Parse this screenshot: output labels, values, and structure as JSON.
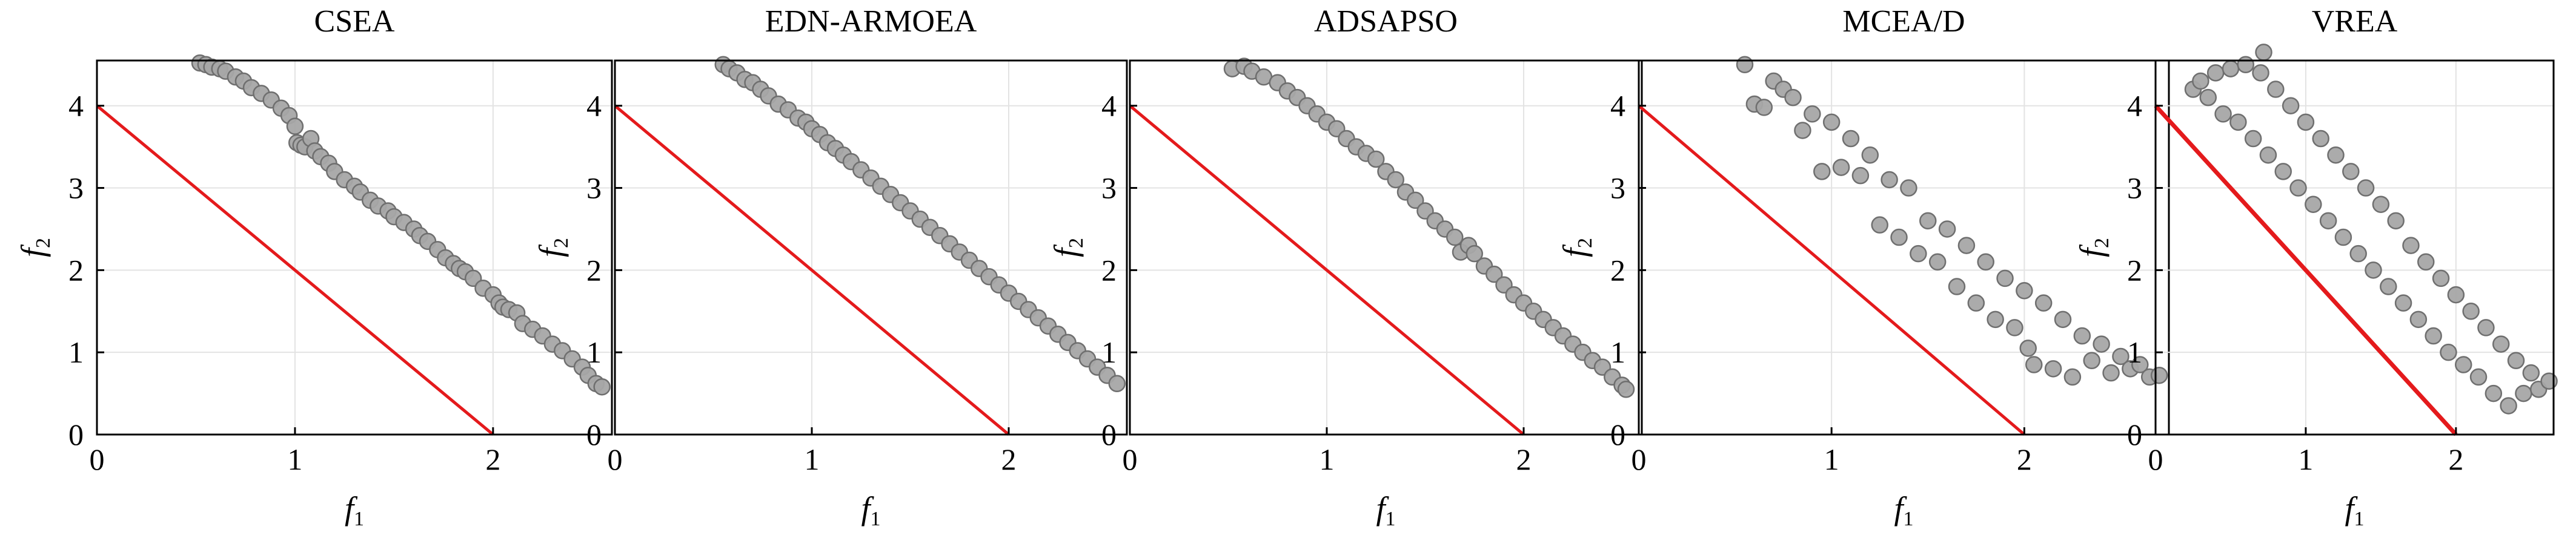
{
  "colors": {
    "front_line": "#e41a1c",
    "point_fill": "#a6a6a6",
    "point_stroke": "#6f6f6f",
    "grid": "#e3e3e3",
    "axis": "#000000"
  },
  "chart_data": [
    {
      "type": "scatter",
      "title": "CSEA",
      "xlabel_base": "f",
      "xlabel_sub": "1",
      "ylabel_base": "f",
      "ylabel_sub": "2",
      "xlim": [
        0,
        2.6
      ],
      "ylim": [
        0,
        4.55
      ],
      "xticks": [
        0,
        1,
        2
      ],
      "yticks": [
        0,
        1,
        2,
        3,
        4
      ],
      "grid": true,
      "reference_line": [
        [
          0,
          4
        ],
        [
          2,
          0
        ]
      ],
      "points": [
        [
          0.52,
          4.52
        ],
        [
          0.55,
          4.5
        ],
        [
          0.58,
          4.47
        ],
        [
          0.62,
          4.45
        ],
        [
          0.65,
          4.42
        ],
        [
          0.7,
          4.35
        ],
        [
          0.74,
          4.3
        ],
        [
          0.78,
          4.22
        ],
        [
          0.83,
          4.15
        ],
        [
          0.88,
          4.07
        ],
        [
          0.93,
          3.97
        ],
        [
          0.97,
          3.88
        ],
        [
          1.0,
          3.75
        ],
        [
          1.01,
          3.55
        ],
        [
          1.03,
          3.52
        ],
        [
          1.05,
          3.5
        ],
        [
          1.08,
          3.6
        ],
        [
          1.1,
          3.45
        ],
        [
          1.13,
          3.38
        ],
        [
          1.17,
          3.3
        ],
        [
          1.2,
          3.2
        ],
        [
          1.25,
          3.1
        ],
        [
          1.3,
          3.02
        ],
        [
          1.33,
          2.95
        ],
        [
          1.38,
          2.85
        ],
        [
          1.42,
          2.78
        ],
        [
          1.47,
          2.72
        ],
        [
          1.5,
          2.65
        ],
        [
          1.55,
          2.58
        ],
        [
          1.6,
          2.5
        ],
        [
          1.63,
          2.42
        ],
        [
          1.67,
          2.35
        ],
        [
          1.72,
          2.25
        ],
        [
          1.76,
          2.15
        ],
        [
          1.8,
          2.08
        ],
        [
          1.83,
          2.02
        ],
        [
          1.86,
          1.98
        ],
        [
          1.9,
          1.9
        ],
        [
          1.95,
          1.78
        ],
        [
          2.0,
          1.7
        ],
        [
          2.03,
          1.6
        ],
        [
          2.05,
          1.55
        ],
        [
          2.08,
          1.52
        ],
        [
          2.12,
          1.48
        ],
        [
          2.15,
          1.35
        ],
        [
          2.2,
          1.28
        ],
        [
          2.25,
          1.2
        ],
        [
          2.3,
          1.1
        ],
        [
          2.35,
          1.02
        ],
        [
          2.4,
          0.92
        ],
        [
          2.45,
          0.82
        ],
        [
          2.48,
          0.72
        ],
        [
          2.52,
          0.62
        ],
        [
          2.55,
          0.58
        ]
      ]
    },
    {
      "type": "scatter",
      "title": "EDN-ARMOEA",
      "xlabel_base": "f",
      "xlabel_sub": "1",
      "ylabel_base": "f",
      "ylabel_sub": "2",
      "xlim": [
        0,
        2.6
      ],
      "ylim": [
        0,
        4.55
      ],
      "xticks": [
        0,
        1,
        2
      ],
      "yticks": [
        0,
        1,
        2,
        3,
        4
      ],
      "grid": true,
      "reference_line": [
        [
          0,
          4
        ],
        [
          2,
          0
        ]
      ],
      "points": [
        [
          0.55,
          4.5
        ],
        [
          0.58,
          4.45
        ],
        [
          0.62,
          4.4
        ],
        [
          0.66,
          4.32
        ],
        [
          0.7,
          4.28
        ],
        [
          0.74,
          4.2
        ],
        [
          0.78,
          4.12
        ],
        [
          0.83,
          4.02
        ],
        [
          0.88,
          3.95
        ],
        [
          0.93,
          3.85
        ],
        [
          0.97,
          3.8
        ],
        [
          1.0,
          3.72
        ],
        [
          1.04,
          3.65
        ],
        [
          1.08,
          3.55
        ],
        [
          1.12,
          3.48
        ],
        [
          1.16,
          3.4
        ],
        [
          1.2,
          3.32
        ],
        [
          1.25,
          3.22
        ],
        [
          1.3,
          3.12
        ],
        [
          1.35,
          3.02
        ],
        [
          1.4,
          2.92
        ],
        [
          1.45,
          2.82
        ],
        [
          1.5,
          2.72
        ],
        [
          1.55,
          2.62
        ],
        [
          1.6,
          2.52
        ],
        [
          1.65,
          2.42
        ],
        [
          1.7,
          2.32
        ],
        [
          1.75,
          2.22
        ],
        [
          1.8,
          2.12
        ],
        [
          1.85,
          2.02
        ],
        [
          1.9,
          1.92
        ],
        [
          1.95,
          1.82
        ],
        [
          2.0,
          1.72
        ],
        [
          2.05,
          1.62
        ],
        [
          2.1,
          1.52
        ],
        [
          2.15,
          1.42
        ],
        [
          2.2,
          1.32
        ],
        [
          2.25,
          1.22
        ],
        [
          2.3,
          1.12
        ],
        [
          2.35,
          1.02
        ],
        [
          2.4,
          0.92
        ],
        [
          2.45,
          0.82
        ],
        [
          2.5,
          0.72
        ],
        [
          2.55,
          0.62
        ]
      ]
    },
    {
      "type": "scatter",
      "title": "ADSAPSO",
      "xlabel_base": "f",
      "xlabel_sub": "1",
      "ylabel_base": "f",
      "ylabel_sub": "2",
      "xlim": [
        0,
        2.6
      ],
      "ylim": [
        0,
        4.55
      ],
      "xticks": [
        0,
        1,
        2
      ],
      "yticks": [
        0,
        1,
        2,
        3,
        4
      ],
      "grid": true,
      "reference_line": [
        [
          0,
          4
        ],
        [
          2,
          0
        ]
      ],
      "points": [
        [
          0.52,
          4.45
        ],
        [
          0.58,
          4.48
        ],
        [
          0.62,
          4.42
        ],
        [
          0.68,
          4.35
        ],
        [
          0.75,
          4.28
        ],
        [
          0.8,
          4.18
        ],
        [
          0.85,
          4.1
        ],
        [
          0.9,
          4.0
        ],
        [
          0.95,
          3.9
        ],
        [
          1.0,
          3.8
        ],
        [
          1.05,
          3.72
        ],
        [
          1.1,
          3.6
        ],
        [
          1.15,
          3.5
        ],
        [
          1.2,
          3.42
        ],
        [
          1.25,
          3.35
        ],
        [
          1.3,
          3.2
        ],
        [
          1.35,
          3.1
        ],
        [
          1.4,
          2.95
        ],
        [
          1.45,
          2.85
        ],
        [
          1.5,
          2.72
        ],
        [
          1.55,
          2.6
        ],
        [
          1.6,
          2.5
        ],
        [
          1.65,
          2.4
        ],
        [
          1.68,
          2.22
        ],
        [
          1.72,
          2.3
        ],
        [
          1.75,
          2.2
        ],
        [
          1.8,
          2.05
        ],
        [
          1.85,
          1.95
        ],
        [
          1.9,
          1.82
        ],
        [
          1.95,
          1.7
        ],
        [
          2.0,
          1.6
        ],
        [
          2.05,
          1.5
        ],
        [
          2.1,
          1.4
        ],
        [
          2.15,
          1.3
        ],
        [
          2.2,
          1.2
        ],
        [
          2.25,
          1.1
        ],
        [
          2.3,
          1.0
        ],
        [
          2.35,
          0.9
        ],
        [
          2.4,
          0.82
        ],
        [
          2.45,
          0.7
        ],
        [
          2.5,
          0.6
        ],
        [
          2.52,
          0.55
        ]
      ]
    },
    {
      "type": "scatter",
      "title": "MCEA/D",
      "xlabel_base": "f",
      "xlabel_sub": "1",
      "ylabel_base": "f",
      "ylabel_sub": "2",
      "xlim": [
        0,
        2.75
      ],
      "ylim": [
        0,
        4.55
      ],
      "xticks": [
        0,
        1,
        2
      ],
      "yticks": [
        0,
        1,
        2,
        3,
        4
      ],
      "grid": true,
      "reference_line": [
        [
          0,
          4
        ],
        [
          2,
          0
        ]
      ],
      "points": [
        [
          0.55,
          4.5
        ],
        [
          0.6,
          4.02
        ],
        [
          0.65,
          3.98
        ],
        [
          0.7,
          4.3
        ],
        [
          0.75,
          4.2
        ],
        [
          0.8,
          4.1
        ],
        [
          0.85,
          3.7
        ],
        [
          0.9,
          3.9
        ],
        [
          0.95,
          3.2
        ],
        [
          1.0,
          3.8
        ],
        [
          1.05,
          3.25
        ],
        [
          1.1,
          3.6
        ],
        [
          1.15,
          3.15
        ],
        [
          1.2,
          3.4
        ],
        [
          1.25,
          2.55
        ],
        [
          1.3,
          3.1
        ],
        [
          1.35,
          2.4
        ],
        [
          1.4,
          3.0
        ],
        [
          1.45,
          2.2
        ],
        [
          1.5,
          2.6
        ],
        [
          1.55,
          2.1
        ],
        [
          1.6,
          2.5
        ],
        [
          1.65,
          1.8
        ],
        [
          1.7,
          2.3
        ],
        [
          1.75,
          1.6
        ],
        [
          1.8,
          2.1
        ],
        [
          1.85,
          1.4
        ],
        [
          1.9,
          1.9
        ],
        [
          1.95,
          1.3
        ],
        [
          2.0,
          1.75
        ],
        [
          2.02,
          1.05
        ],
        [
          2.05,
          0.85
        ],
        [
          2.1,
          1.6
        ],
        [
          2.15,
          0.8
        ],
        [
          2.2,
          1.4
        ],
        [
          2.25,
          0.7
        ],
        [
          2.3,
          1.2
        ],
        [
          2.35,
          0.9
        ],
        [
          2.4,
          1.1
        ],
        [
          2.45,
          0.75
        ],
        [
          2.5,
          0.95
        ],
        [
          2.55,
          0.8
        ],
        [
          2.6,
          0.85
        ],
        [
          2.65,
          0.7
        ],
        [
          2.7,
          0.72
        ]
      ]
    },
    {
      "type": "scatter",
      "title": "VREA",
      "xlabel_base": "f",
      "xlabel_sub": "1",
      "ylabel_base": "f",
      "ylabel_sub": "2",
      "xlim": [
        0,
        2.65
      ],
      "ylim": [
        0,
        4.55
      ],
      "xticks": [
        0,
        1,
        2
      ],
      "yticks": [
        0,
        1,
        2,
        3,
        4
      ],
      "grid": true,
      "reference_line": [
        [
          0,
          4
        ],
        [
          2,
          0
        ]
      ],
      "points": [
        [
          0.25,
          4.2
        ],
        [
          0.3,
          4.3
        ],
        [
          0.35,
          4.1
        ],
        [
          0.4,
          4.4
        ],
        [
          0.45,
          3.9
        ],
        [
          0.5,
          4.45
        ],
        [
          0.55,
          3.8
        ],
        [
          0.6,
          4.5
        ],
        [
          0.65,
          3.6
        ],
        [
          0.7,
          4.4
        ],
        [
          0.72,
          4.65
        ],
        [
          0.75,
          3.4
        ],
        [
          0.8,
          4.2
        ],
        [
          0.85,
          3.2
        ],
        [
          0.9,
          4.0
        ],
        [
          0.95,
          3.0
        ],
        [
          1.0,
          3.8
        ],
        [
          1.05,
          2.8
        ],
        [
          1.1,
          3.6
        ],
        [
          1.15,
          2.6
        ],
        [
          1.2,
          3.4
        ],
        [
          1.25,
          2.4
        ],
        [
          1.3,
          3.2
        ],
        [
          1.35,
          2.2
        ],
        [
          1.4,
          3.0
        ],
        [
          1.45,
          2.0
        ],
        [
          1.5,
          2.8
        ],
        [
          1.55,
          1.8
        ],
        [
          1.6,
          2.6
        ],
        [
          1.65,
          1.6
        ],
        [
          1.7,
          2.3
        ],
        [
          1.75,
          1.4
        ],
        [
          1.8,
          2.1
        ],
        [
          1.85,
          1.2
        ],
        [
          1.9,
          1.9
        ],
        [
          1.95,
          1.0
        ],
        [
          2.0,
          1.7
        ],
        [
          2.05,
          0.85
        ],
        [
          2.1,
          1.5
        ],
        [
          2.15,
          0.7
        ],
        [
          2.2,
          1.3
        ],
        [
          2.25,
          0.5
        ],
        [
          2.3,
          1.1
        ],
        [
          2.35,
          0.35
        ],
        [
          2.4,
          0.9
        ],
        [
          2.45,
          0.5
        ],
        [
          2.5,
          0.75
        ],
        [
          2.55,
          0.55
        ],
        [
          2.62,
          0.65
        ]
      ]
    }
  ]
}
